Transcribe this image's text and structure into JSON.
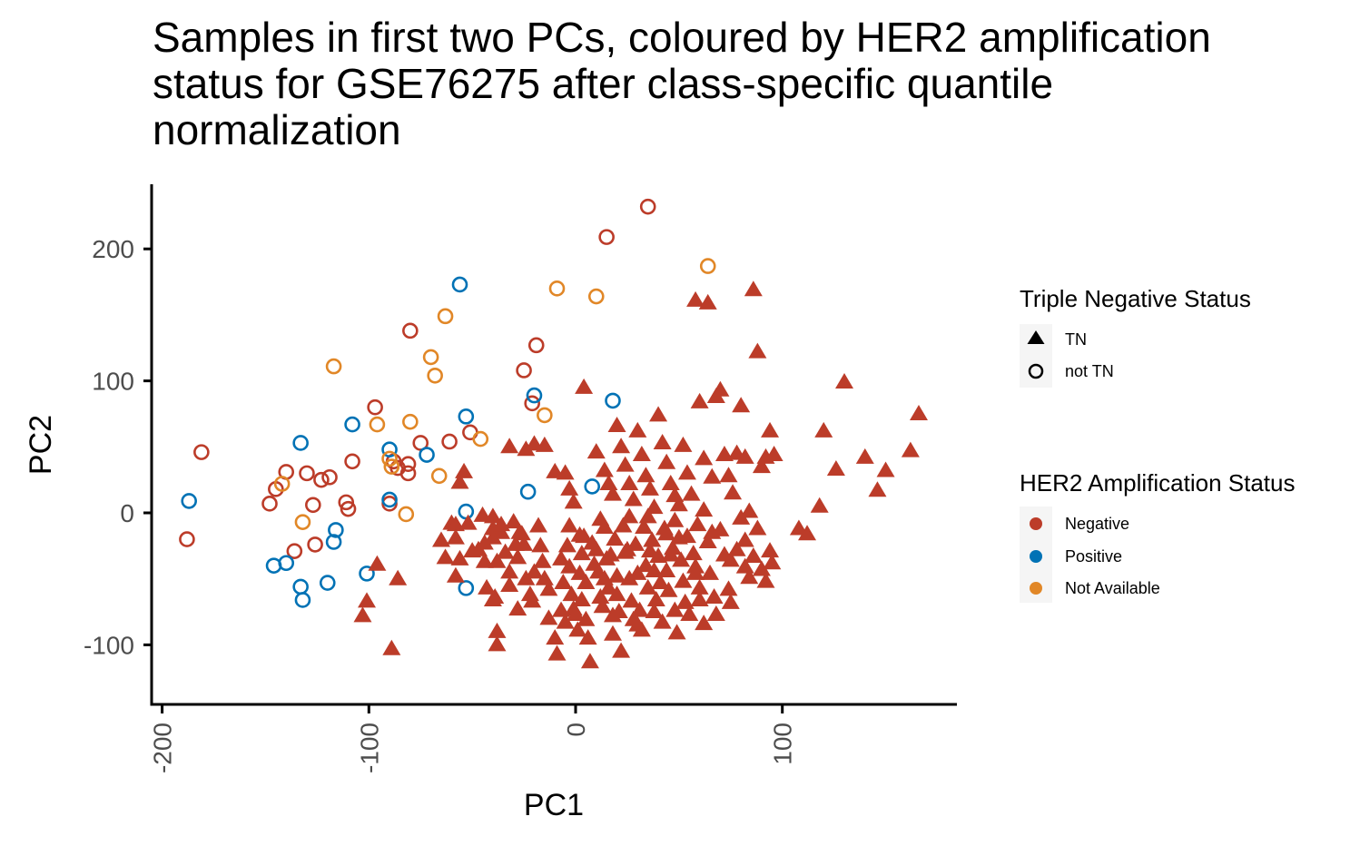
{
  "chart_data": {
    "type": "scatter",
    "title_lines": [
      "Samples in first two PCs, coloured by HER2 amplification",
      "status for GSE76275 after class-specific quantile",
      "normalization"
    ],
    "xlabel": "PC1",
    "ylabel": "PC2",
    "xlim": [
      -205,
      183
    ],
    "ylim": [
      -145,
      250
    ],
    "x_ticks": [
      -200,
      -100,
      0,
      100
    ],
    "x_tick_labels": [
      "-200",
      "-100",
      "0",
      "100"
    ],
    "y_ticks": [
      -100,
      0,
      100,
      200
    ],
    "y_tick_labels": [
      "-100",
      "0",
      "100",
      "200"
    ],
    "grid": false,
    "legend_position": "right",
    "legends": {
      "shape": {
        "title": "Triple Negative Status",
        "items": [
          {
            "key": "TN",
            "label": "TN",
            "marker": "triangle"
          },
          {
            "key": "not TN",
            "label": "not TN",
            "marker": "circle"
          }
        ]
      },
      "color": {
        "title": "HER2 Amplification Status",
        "items": [
          {
            "key": "Negative",
            "label": "Negative",
            "color": "#BC3C29"
          },
          {
            "key": "Positive",
            "label": "Positive",
            "color": "#0072B5"
          },
          {
            "key": "Not Available",
            "label": "Not Available",
            "color": "#E18727"
          }
        ]
      }
    },
    "series": [
      {
        "tn": "not TN",
        "her2": "Negative",
        "color": "#BC3C29",
        "marker": "circle",
        "points": [
          [
            -181,
            46
          ],
          [
            -188,
            -20
          ],
          [
            -148,
            7
          ],
          [
            -145,
            18
          ],
          [
            -140,
            31
          ],
          [
            -136,
            -29
          ],
          [
            -130,
            30
          ],
          [
            -127,
            6
          ],
          [
            -126,
            -24
          ],
          [
            -123,
            25
          ],
          [
            -119,
            27
          ],
          [
            -111,
            8
          ],
          [
            -110,
            3
          ],
          [
            -108,
            39
          ],
          [
            -97,
            80
          ],
          [
            -90,
            7
          ],
          [
            -88,
            39
          ],
          [
            -86,
            34
          ],
          [
            -81,
            30
          ],
          [
            -81,
            37
          ],
          [
            -80,
            138
          ],
          [
            -75,
            53
          ],
          [
            -61,
            54
          ],
          [
            -51,
            61
          ],
          [
            -25,
            108
          ],
          [
            -21,
            83
          ],
          [
            -19,
            127
          ],
          [
            15,
            209
          ],
          [
            35,
            232
          ]
        ]
      },
      {
        "tn": "not TN",
        "her2": "Positive",
        "color": "#0072B5",
        "marker": "circle",
        "points": [
          [
            -187,
            9
          ],
          [
            -146,
            -40
          ],
          [
            -140,
            -38
          ],
          [
            -133,
            53
          ],
          [
            -133,
            -56
          ],
          [
            -132,
            -66
          ],
          [
            -120,
            -53
          ],
          [
            -116,
            -13
          ],
          [
            -117,
            -22
          ],
          [
            -108,
            67
          ],
          [
            -101,
            -46
          ],
          [
            -90,
            48
          ],
          [
            -90,
            10
          ],
          [
            -72,
            44
          ],
          [
            -56,
            173
          ],
          [
            -53,
            73
          ],
          [
            -53,
            1
          ],
          [
            -53,
            -57
          ],
          [
            -23,
            16
          ],
          [
            -20,
            89
          ],
          [
            8,
            20
          ],
          [
            18,
            85
          ]
        ]
      },
      {
        "tn": "not TN",
        "her2": "Not Available",
        "color": "#E18727",
        "marker": "circle",
        "points": [
          [
            -142,
            22
          ],
          [
            -132,
            -7
          ],
          [
            -117,
            111
          ],
          [
            -96,
            67
          ],
          [
            -90,
            41
          ],
          [
            -89,
            35
          ],
          [
            -82,
            -1
          ],
          [
            -80,
            69
          ],
          [
            -70,
            118
          ],
          [
            -68,
            104
          ],
          [
            -66,
            28
          ],
          [
            -63,
            149
          ],
          [
            -46,
            56
          ],
          [
            -15,
            74
          ],
          [
            -9,
            170
          ],
          [
            10,
            164
          ],
          [
            64,
            187
          ]
        ]
      },
      {
        "tn": "TN",
        "her2": "Negative",
        "color": "#BC3C29",
        "marker": "triangle",
        "points": [
          [
            -103,
            -78
          ],
          [
            -101,
            -67
          ],
          [
            -96,
            -39
          ],
          [
            -89,
            -103
          ],
          [
            -86,
            -50
          ],
          [
            -65,
            -21
          ],
          [
            -63,
            -34
          ],
          [
            -60,
            -8
          ],
          [
            -58,
            -9
          ],
          [
            -58,
            -19
          ],
          [
            -58,
            -48
          ],
          [
            -56,
            23
          ],
          [
            -56,
            -35
          ],
          [
            -54,
            31
          ],
          [
            -52,
            -8
          ],
          [
            -47,
            -28
          ],
          [
            -45,
            -2
          ],
          [
            -44,
            -23
          ],
          [
            -44,
            -37
          ],
          [
            -43,
            -57
          ],
          [
            -40,
            -3
          ],
          [
            -40,
            -12
          ],
          [
            -40,
            -19
          ],
          [
            -39,
            -64
          ],
          [
            -38,
            -37
          ],
          [
            -38,
            -90
          ],
          [
            -38,
            -100
          ],
          [
            -36,
            -15
          ],
          [
            -34,
            -30
          ],
          [
            -32,
            -45
          ],
          [
            -32,
            -55
          ],
          [
            -30,
            -7
          ],
          [
            -29,
            -24
          ],
          [
            -28,
            -34
          ],
          [
            -28,
            -73
          ],
          [
            -26,
            -16
          ],
          [
            -25,
            -24
          ],
          [
            -24,
            -50
          ],
          [
            -22,
            -62
          ],
          [
            -21,
            -67
          ],
          [
            -20,
            -45
          ],
          [
            -18,
            -10
          ],
          [
            -17,
            -25
          ],
          [
            -16,
            -37
          ],
          [
            -15,
            -50
          ],
          [
            -13,
            -58
          ],
          [
            -13,
            -80
          ],
          [
            -10,
            -95
          ],
          [
            -9,
            -107
          ],
          [
            -7,
            -35
          ],
          [
            -7,
            -74
          ],
          [
            -6,
            -53
          ],
          [
            -5,
            -83
          ],
          [
            -4,
            -25
          ],
          [
            -3,
            -41
          ],
          [
            -2,
            -62
          ],
          [
            -1,
            -73
          ],
          [
            0,
            -77
          ],
          [
            1,
            -89
          ],
          [
            2,
            -46
          ],
          [
            3,
            -31
          ],
          [
            3,
            -66
          ],
          [
            4,
            -18
          ],
          [
            5,
            -53
          ],
          [
            5,
            -81
          ],
          [
            6,
            -95
          ],
          [
            7,
            -113
          ],
          [
            8,
            -23
          ],
          [
            9,
            -39
          ],
          [
            10,
            -28
          ],
          [
            11,
            -45
          ],
          [
            12,
            -64
          ],
          [
            13,
            -71
          ],
          [
            14,
            -11
          ],
          [
            14,
            -50
          ],
          [
            15,
            -35
          ],
          [
            16,
            -57
          ],
          [
            17,
            -32
          ],
          [
            18,
            -92
          ],
          [
            19,
            -20
          ],
          [
            20,
            -48
          ],
          [
            20,
            -62
          ],
          [
            21,
            -75
          ],
          [
            22,
            -105
          ],
          [
            23,
            -10
          ],
          [
            24,
            -30
          ],
          [
            25,
            -28
          ],
          [
            26,
            -50
          ],
          [
            27,
            -67
          ],
          [
            28,
            -81
          ],
          [
            29,
            -24
          ],
          [
            30,
            -46
          ],
          [
            31,
            -74
          ],
          [
            32,
            -89
          ],
          [
            33,
            -11
          ],
          [
            34,
            -40
          ],
          [
            35,
            -57
          ],
          [
            36,
            -29
          ],
          [
            37,
            -21
          ],
          [
            38,
            -75
          ],
          [
            39,
            -66
          ],
          [
            40,
            -33
          ],
          [
            41,
            -53
          ],
          [
            42,
            -83
          ],
          [
            43,
            -12
          ],
          [
            44,
            -44
          ],
          [
            45,
            -59
          ],
          [
            47,
            -27
          ],
          [
            48,
            -74
          ],
          [
            49,
            -91
          ],
          [
            50,
            -19
          ],
          [
            51,
            -36
          ],
          [
            52,
            -52
          ],
          [
            53,
            -68
          ],
          [
            55,
            -77
          ],
          [
            57,
            -31
          ],
          [
            58,
            -41
          ],
          [
            59,
            -9
          ],
          [
            60,
            -57
          ],
          [
            62,
            -84
          ],
          [
            64,
            -22
          ],
          [
            65,
            -46
          ],
          [
            67,
            -64
          ],
          [
            68,
            -77
          ],
          [
            70,
            -13
          ],
          [
            72,
            -32
          ],
          [
            74,
            -58
          ],
          [
            75,
            -68
          ],
          [
            78,
            -28
          ],
          [
            80,
            -4
          ],
          [
            82,
            -21
          ],
          [
            84,
            -49
          ],
          [
            86,
            -33
          ],
          [
            88,
            -12
          ],
          [
            90,
            -43
          ],
          [
            92,
            -52
          ],
          [
            95,
            -38
          ],
          [
            -32,
            50
          ],
          [
            -20,
            52
          ],
          [
            -24,
            48
          ],
          [
            -15,
            51
          ],
          [
            -10,
            31
          ],
          [
            -5,
            30
          ],
          [
            -3,
            18
          ],
          [
            -1,
            8
          ],
          [
            4,
            95
          ],
          [
            10,
            46
          ],
          [
            14,
            32
          ],
          [
            16,
            22
          ],
          [
            18,
            14
          ],
          [
            20,
            66
          ],
          [
            22,
            50
          ],
          [
            24,
            36
          ],
          [
            26,
            22
          ],
          [
            28,
            10
          ],
          [
            30,
            62
          ],
          [
            32,
            44
          ],
          [
            34,
            28
          ],
          [
            36,
            18
          ],
          [
            38,
            4
          ],
          [
            40,
            74
          ],
          [
            42,
            53
          ],
          [
            44,
            38
          ],
          [
            46,
            22
          ],
          [
            48,
            13
          ],
          [
            50,
            6
          ],
          [
            52,
            51
          ],
          [
            54,
            30
          ],
          [
            56,
            14
          ],
          [
            58,
            161
          ],
          [
            60,
            84
          ],
          [
            62,
            41
          ],
          [
            64,
            159
          ],
          [
            66,
            27
          ],
          [
            68,
            88
          ],
          [
            70,
            93
          ],
          [
            72,
            44
          ],
          [
            74,
            28
          ],
          [
            76,
            15
          ],
          [
            78,
            45
          ],
          [
            80,
            81
          ],
          [
            82,
            42
          ],
          [
            84,
            1
          ],
          [
            86,
            169
          ],
          [
            88,
            122
          ],
          [
            90,
            35
          ],
          [
            92,
            42
          ],
          [
            94,
            62
          ],
          [
            96,
            44
          ],
          [
            112,
            -16
          ],
          [
            118,
            5
          ],
          [
            120,
            62
          ],
          [
            126,
            33
          ],
          [
            130,
            99
          ],
          [
            140,
            42
          ],
          [
            146,
            17
          ],
          [
            150,
            32
          ],
          [
            162,
            47
          ],
          [
            166,
            75
          ],
          [
            108,
            -12
          ],
          [
            94,
            -29
          ],
          [
            -40,
            -66
          ],
          [
            -50,
            -29
          ],
          [
            -36,
            -9
          ],
          [
            -27,
            -15
          ],
          [
            2,
            -17
          ],
          [
            26,
            -3
          ],
          [
            46,
            -32
          ],
          [
            58,
            -46
          ],
          [
            62,
            2
          ],
          [
            44,
            -16
          ],
          [
            35,
            -3
          ],
          [
            12,
            -5
          ],
          [
            -3,
            -10
          ],
          [
            18,
            -78
          ],
          [
            30,
            -85
          ],
          [
            54,
            -18
          ],
          [
            75,
            -36
          ],
          [
            82,
            -41
          ],
          [
            66,
            -15
          ],
          [
            60,
            -66
          ],
          [
            48,
            -6
          ],
          [
            38,
            -44
          ]
        ]
      }
    ]
  }
}
